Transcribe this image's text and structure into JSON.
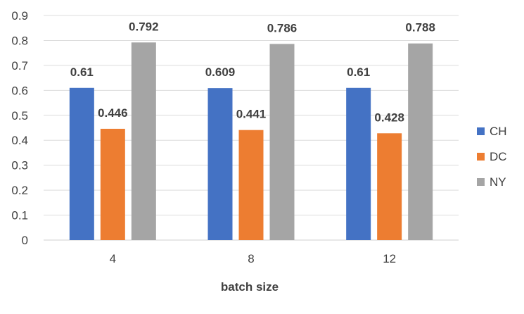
{
  "chart_data": {
    "type": "bar",
    "xlabel": "batch size",
    "ylabel": "",
    "categories": [
      "4",
      "8",
      "12"
    ],
    "ylim": [
      0,
      0.9
    ],
    "ytick_labels": [
      "0",
      "0.1",
      "0.2",
      "0.3",
      "0.4",
      "0.5",
      "0.6",
      "0.7",
      "0.8",
      "0.9"
    ],
    "grid": true,
    "legend_position": "right",
    "series": [
      {
        "name": "CH",
        "color": "#4472C4",
        "values": [
          0.61,
          0.609,
          0.61
        ],
        "labels": [
          "0.61",
          "0.609",
          "0.61"
        ]
      },
      {
        "name": "DC",
        "color": "#ED7D31",
        "values": [
          0.446,
          0.441,
          0.428
        ],
        "labels": [
          "0.446",
          "0.441",
          "0.428"
        ]
      },
      {
        "name": "NY",
        "color": "#A5A5A5",
        "values": [
          0.792,
          0.786,
          0.788
        ],
        "labels": [
          "0.792",
          "0.786",
          "0.788"
        ]
      }
    ]
  }
}
